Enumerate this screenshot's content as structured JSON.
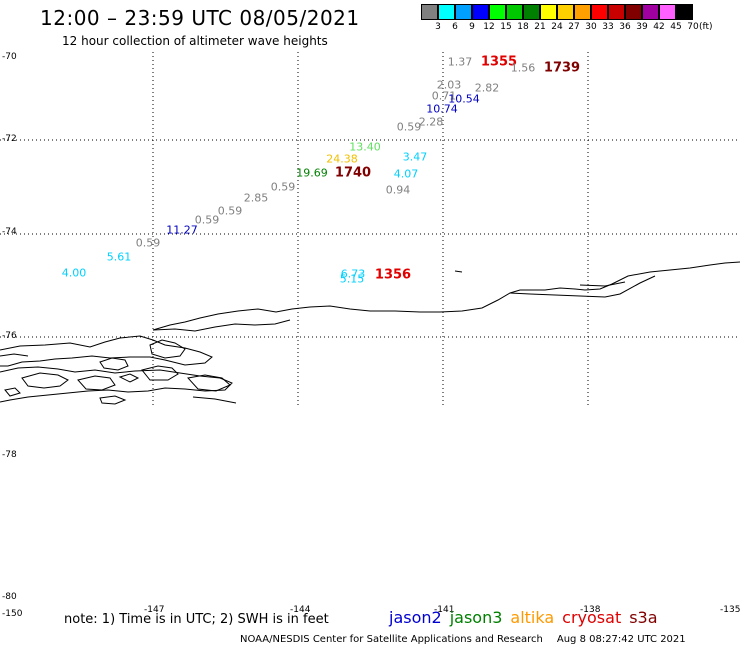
{
  "header": {
    "title": "12:00 – 23:59 UTC 08/05/2021",
    "subtitle": "12 hour collection of altimeter wave heights"
  },
  "colorbar": {
    "unit": "(ft)",
    "bins": [
      {
        "label": "3",
        "color": "#808080"
      },
      {
        "label": "6",
        "color": "#00ffff"
      },
      {
        "label": "9",
        "color": "#00a0ff"
      },
      {
        "label": "12",
        "color": "#0000ff"
      },
      {
        "label": "15",
        "color": "#00ff00"
      },
      {
        "label": "18",
        "color": "#00c800"
      },
      {
        "label": "21",
        "color": "#008000"
      },
      {
        "label": "24",
        "color": "#ffff00"
      },
      {
        "label": "27",
        "color": "#ffd000"
      },
      {
        "label": "30",
        "color": "#ffa000"
      },
      {
        "label": "33",
        "color": "#ff0000"
      },
      {
        "label": "36",
        "color": "#c80000"
      },
      {
        "label": "39",
        "color": "#800000"
      },
      {
        "label": "42",
        "color": "#a000a0"
      },
      {
        "label": "45",
        "color": "#ff60ff"
      },
      {
        "label": "70",
        "color": "#000000"
      }
    ]
  },
  "map": {
    "lat_labels": [
      "-70",
      "-72",
      "-74",
      "-76",
      "-78",
      "-80"
    ],
    "lon_labels": [
      "-150",
      "-147",
      "-144",
      "-141",
      "-138",
      "-135"
    ]
  },
  "observations": [
    {
      "text": "1.37",
      "color": "#808080"
    },
    {
      "text": "1355",
      "color": "#e00000",
      "big": true
    },
    {
      "text": "1.56",
      "color": "#808080"
    },
    {
      "text": "1739",
      "color": "#800000",
      "big": true
    },
    {
      "text": "2.03",
      "color": "#808080"
    },
    {
      "text": "2.82",
      "color": "#808080"
    },
    {
      "text": "0.71",
      "color": "#808080"
    },
    {
      "text": "10.54",
      "color": "#0000c0"
    },
    {
      "text": "10.74",
      "color": "#0000c0"
    },
    {
      "text": "2.28",
      "color": "#808080"
    },
    {
      "text": "0.59",
      "color": "#808080"
    },
    {
      "text": "13.40",
      "color": "#60e060"
    },
    {
      "text": "3.47",
      "color": "#00d0ff"
    },
    {
      "text": "24.38",
      "color": "#f0c000"
    },
    {
      "text": "19.69",
      "color": "#008000"
    },
    {
      "text": "1740",
      "color": "#800000",
      "big": true
    },
    {
      "text": "4.07",
      "color": "#00d0ff"
    },
    {
      "text": "0.59",
      "color": "#808080"
    },
    {
      "text": "0.94",
      "color": "#808080"
    },
    {
      "text": "2.85",
      "color": "#808080"
    },
    {
      "text": "0.59",
      "color": "#808080"
    },
    {
      "text": "0.59",
      "color": "#808080"
    },
    {
      "text": "11.27",
      "color": "#0000c0"
    },
    {
      "text": "0.59",
      "color": "#808080"
    },
    {
      "text": "5.61",
      "color": "#00d0ff"
    },
    {
      "text": "4.00",
      "color": "#00d0ff"
    },
    {
      "text": "6.73",
      "color": "#00d0ff"
    },
    {
      "text": "5.15",
      "color": "#00d0ff"
    },
    {
      "text": "1356",
      "color": "#e00000",
      "big": true
    }
  ],
  "footer": {
    "note": "note: 1) Time is in UTC; 2) SWH is in feet",
    "credit": "NOAA/NESDIS Center for Satellite Applications and Research",
    "timestamp": "Aug  8 08:27:42 UTC 2021"
  },
  "legend": [
    {
      "name": "jason2",
      "color": "#0000d0"
    },
    {
      "name": "jason3",
      "color": "#008000"
    },
    {
      "name": "altika",
      "color": "#ff9900"
    },
    {
      "name": "cryosat",
      "color": "#e00000"
    },
    {
      "name": "s3a",
      "color": "#800000"
    }
  ]
}
